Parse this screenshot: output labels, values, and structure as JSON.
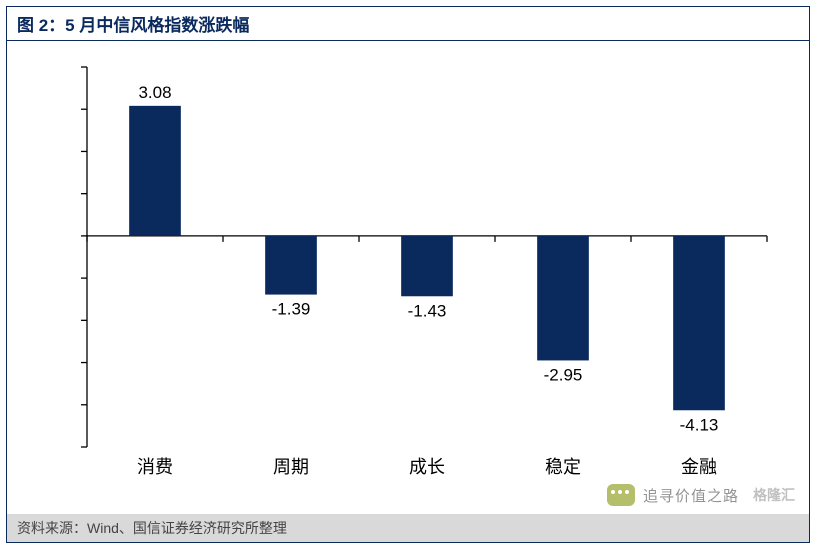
{
  "header": {
    "title": "图 2：5 月中信风格指数涨跌幅"
  },
  "footer": {
    "source": "资料来源：Wind、国信证券经济研究所整理"
  },
  "watermark": {
    "text": "追寻价值之路",
    "logo": "格隆汇"
  },
  "chart": {
    "type": "bar",
    "categories": [
      "消费",
      "周期",
      "成长",
      "稳定",
      "金融"
    ],
    "values": [
      3.08,
      -1.39,
      -1.43,
      -2.95,
      -4.13
    ],
    "bar_color": "#0a2a5e",
    "background_color": "#ffffff",
    "ylim": [
      -5,
      4
    ],
    "ytick_step": 1,
    "yticks": [
      4,
      3,
      2,
      1,
      0,
      -1,
      -2,
      -3,
      -4,
      -5
    ],
    "bar_width": 0.38,
    "label_fontsize": 17,
    "category_fontsize": 18,
    "axis_color": "#000000",
    "tick_length": 6
  }
}
